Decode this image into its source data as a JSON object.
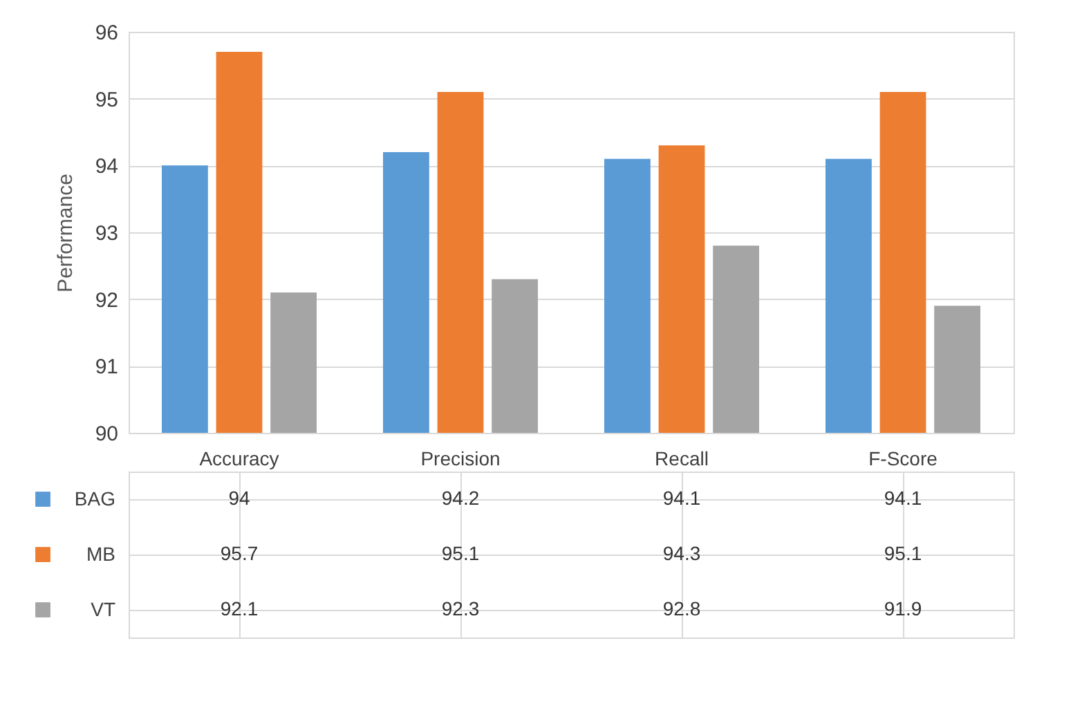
{
  "chart_data": {
    "type": "bar",
    "ylabel": "Performance",
    "categories": [
      "Accuracy",
      "Precision",
      "Recall",
      "F-Score"
    ],
    "series": [
      {
        "name": "BAG",
        "color": "#5b9bd5",
        "values": [
          94,
          94.2,
          94.1,
          94.1
        ]
      },
      {
        "name": "MB",
        "color": "#ed7d31",
        "values": [
          95.7,
          95.1,
          94.3,
          95.1
        ]
      },
      {
        "name": "VT",
        "color": "#a5a5a5",
        "values": [
          92.1,
          92.3,
          92.8,
          91.9
        ]
      }
    ],
    "ylim": [
      90,
      96
    ],
    "yticks": [
      90,
      91,
      92,
      93,
      94,
      95,
      96
    ],
    "grid": "y",
    "legend": "bottom left",
    "data_labels": true
  }
}
